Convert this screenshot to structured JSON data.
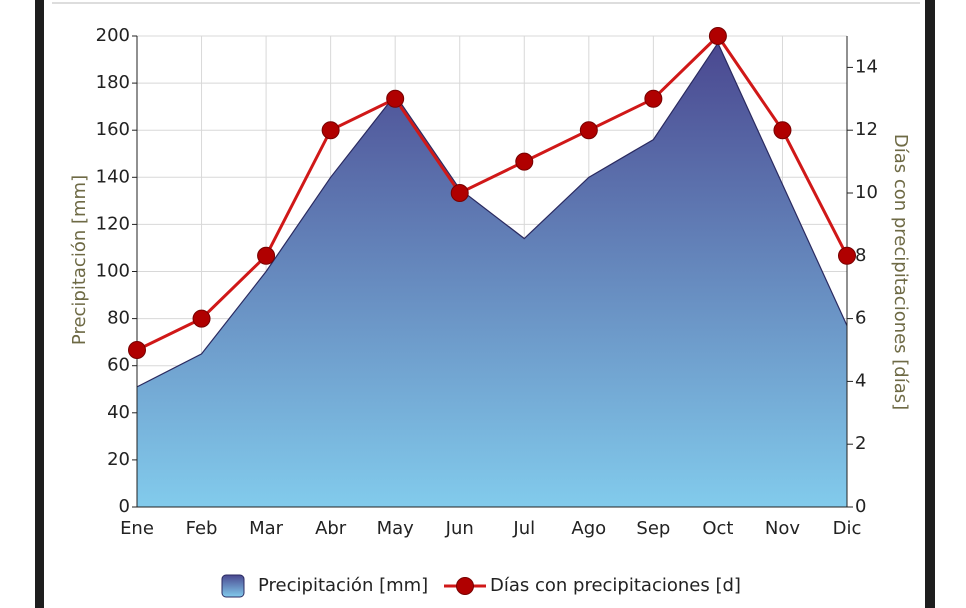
{
  "chart_data": {
    "type": "area_line",
    "categories": [
      "Ene",
      "Feb",
      "Mar",
      "Abr",
      "May",
      "Jun",
      "Jul",
      "Ago",
      "Sep",
      "Oct",
      "Nov",
      "Dic"
    ],
    "y_label": "Precipitación [mm]",
    "y2_label": "Días con precipitaciones [días]",
    "series": [
      {
        "name": "Precipitación [mm]",
        "color": "#4a4890",
        "color_bottom": "#82cbec",
        "kind": "area",
        "values": [
          51,
          65,
          100,
          140,
          175,
          135,
          114,
          140,
          156,
          197,
          137,
          77
        ]
      },
      {
        "name": "Días con precipitaciones [d]",
        "color": "#d01818",
        "marker_color": "#b00000",
        "kind": "line",
        "axis": "y2",
        "values": [
          5,
          6,
          8,
          12,
          13,
          10,
          11,
          12,
          13,
          15,
          12,
          8
        ]
      }
    ],
    "ylim": [
      0,
      200
    ],
    "yticks": [
      0,
      20,
      40,
      60,
      80,
      100,
      120,
      140,
      160,
      180,
      200
    ],
    "y2lim": [
      0,
      15
    ],
    "y2ticks": [
      0,
      2,
      4,
      6,
      8,
      10,
      12,
      14
    ],
    "grid": true,
    "legend": "bottom"
  }
}
